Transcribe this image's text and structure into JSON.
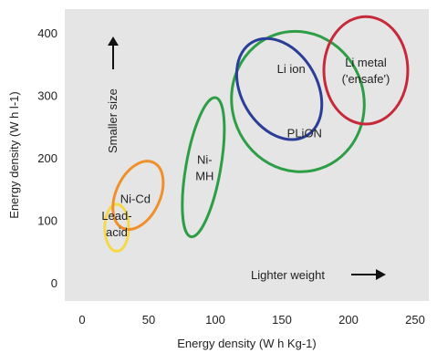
{
  "chart_data": {
    "type": "scatter",
    "title": "",
    "xlabel": "Energy density (W h Kg-1)",
    "ylabel": "Energy density (W h l-1)",
    "xlim": [
      0,
      250
    ],
    "ylim": [
      0,
      420
    ],
    "xticks": [
      0,
      50,
      100,
      150,
      200,
      250
    ],
    "yticks": [
      0,
      100,
      200,
      300,
      400
    ],
    "xtick_labels": [
      "0",
      "50",
      "100",
      "150",
      "200",
      "250"
    ],
    "ytick_labels": [
      "0",
      "100",
      "200",
      "300",
      "400"
    ],
    "grid": false,
    "background": "#e5e5e5",
    "regions": [
      {
        "name": "Lead-acid",
        "label_lines": [
          "Lead-",
          "acid"
        ],
        "color": "#f5d94a",
        "center": [
          26,
          88
        ],
        "width_units": 18,
        "height_units": 75,
        "angle_deg": 0,
        "label_pos": [
          26,
          95
        ]
      },
      {
        "name": "Ni-Cd",
        "label_lines": [
          "Ni-Cd"
        ],
        "color": "#f0902a",
        "center": [
          42,
          140
        ],
        "width_units": 33,
        "height_units": 116,
        "angle_deg": 25,
        "label_pos": [
          40,
          135
        ]
      },
      {
        "name": "Ni-MH",
        "label_lines": [
          "Ni-",
          "MH"
        ],
        "color": "#2e9e46",
        "center": [
          91,
          185
        ],
        "width_units": 26,
        "height_units": 226,
        "angle_deg": 10,
        "label_pos": [
          92,
          185
        ]
      },
      {
        "name": "PLiON",
        "label_lines": [
          "PLiON"
        ],
        "color": "#2e9e46",
        "center": [
          162,
          290
        ],
        "width_units": 99,
        "height_units": 226,
        "angle_deg": -18,
        "label_pos": [
          167,
          240
        ]
      },
      {
        "name": "Li ion",
        "label_lines": [
          "Li ion"
        ],
        "color": "#2a3d97",
        "center": [
          148,
          310
        ],
        "width_units": 57,
        "height_units": 173,
        "angle_deg": -30,
        "label_pos": [
          157,
          343
        ]
      },
      {
        "name": "Li metal ('ensafe')",
        "label_lines": [
          "Li metal",
          "('ensafe')"
        ],
        "color": "#c62a3a",
        "center": [
          213,
          340
        ],
        "width_units": 63,
        "height_units": 172,
        "angle_deg": 0,
        "label_pos": [
          213,
          340
        ]
      }
    ],
    "annotations": [
      {
        "text": "Smaller size",
        "direction": "up"
      },
      {
        "text": "Lighter weight",
        "direction": "right"
      }
    ]
  }
}
